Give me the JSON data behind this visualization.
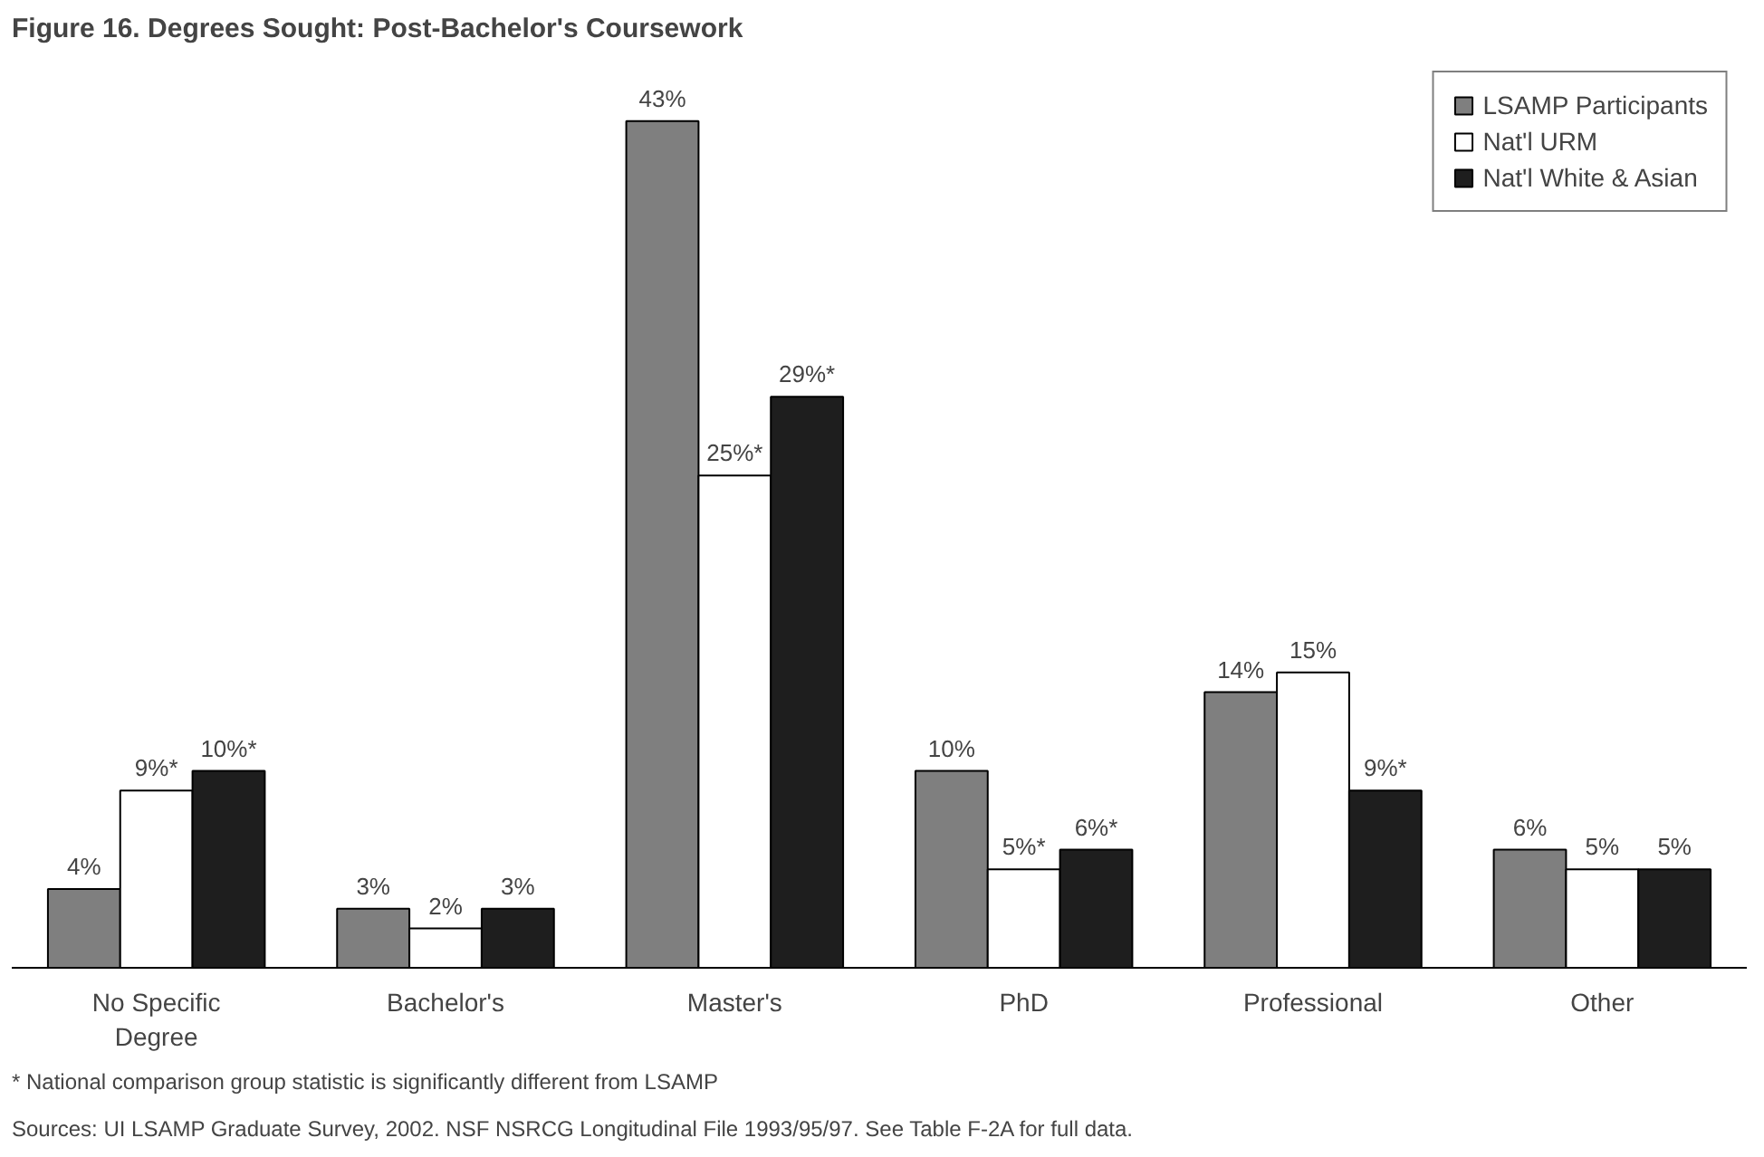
{
  "chart_data": {
    "type": "bar",
    "title": "Figure 16. Degrees Sought: Post-Bachelor's Coursework",
    "categories": [
      "No Specific\nDegree",
      "Bachelor's",
      "Master's",
      "PhD",
      "Professional",
      "Other"
    ],
    "series": [
      {
        "name": "LSAMP Participants",
        "color": "#7f7f7f",
        "values": [
          4,
          3,
          43,
          10,
          14,
          6
        ],
        "value_labels": [
          "4%",
          "3%",
          "43%",
          "10%",
          "14%",
          "6%"
        ]
      },
      {
        "name": "Nat'l URM",
        "color": "#ffffff",
        "values": [
          9,
          2,
          25,
          5,
          15,
          5
        ],
        "value_labels": [
          "9%*",
          "2%",
          "25%*",
          "5%*",
          "15%",
          "5%"
        ]
      },
      {
        "name": "Nat'l White & Asian",
        "color": "#1e1e1e",
        "values": [
          10,
          3,
          29,
          6,
          9,
          5
        ],
        "value_labels": [
          "10%*",
          "3%",
          "29%*",
          "6%*",
          "9%*",
          "5%"
        ]
      }
    ],
    "legend": "top right",
    "grid": false,
    "annotations": [
      "* National comparison group statistic is significantly different from LSAMP",
      "Sources: UI LSAMP Graduate Survey, 2002. NSF NSRCG Longitudinal File 1993/95/97. See Table F-2A for full data."
    ]
  }
}
